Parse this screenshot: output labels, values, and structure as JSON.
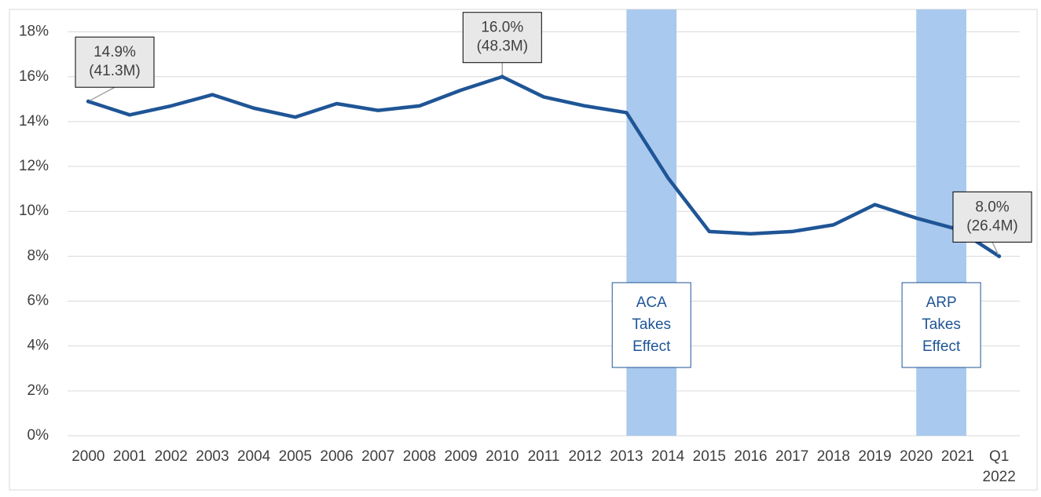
{
  "chart_data": {
    "type": "line",
    "categories": [
      "2000",
      "2001",
      "2002",
      "2003",
      "2004",
      "2005",
      "2006",
      "2007",
      "2008",
      "2009",
      "2010",
      "2011",
      "2012",
      "2013",
      "2014",
      "2015",
      "2016",
      "2017",
      "2018",
      "2019",
      "2020",
      "2021",
      "Q1 2022"
    ],
    "series": [
      {
        "color": "#1f5596",
        "values": [
          14.9,
          14.3,
          14.7,
          15.2,
          14.6,
          14.2,
          14.8,
          14.5,
          14.7,
          15.4,
          16.0,
          15.1,
          14.7,
          14.4,
          11.5,
          9.1,
          9.0,
          9.1,
          9.4,
          10.3,
          9.7,
          9.2,
          8.0
        ],
        "value_labels": [
          "14.9% (41.3M)",
          null,
          null,
          null,
          null,
          null,
          null,
          null,
          null,
          null,
          "16.0% (48.3M)",
          null,
          null,
          null,
          null,
          null,
          null,
          null,
          null,
          null,
          null,
          null,
          "8.0% (26.4M)"
        ]
      }
    ],
    "ylim": [
      0,
      19
    ],
    "yticks": [
      {
        "value": 0,
        "label": "0%"
      },
      {
        "value": 2,
        "label": "2%"
      },
      {
        "value": 4,
        "label": "4%"
      },
      {
        "value": 6,
        "label": "6%"
      },
      {
        "value": 8,
        "label": "8%"
      },
      {
        "value": 10,
        "label": "10%"
      },
      {
        "value": 12,
        "label": "12%"
      },
      {
        "value": 14,
        "label": "14%"
      },
      {
        "value": 16,
        "label": "16%"
      },
      {
        "value": 18,
        "label": "18%"
      }
    ],
    "grid": true,
    "bands": [
      {
        "from": "2013",
        "to": "2014",
        "label": "ACA Takes Effect",
        "color": "#a9c9ee"
      },
      {
        "from": "2020",
        "to": "2021",
        "label": "ARP Takes Effect",
        "color": "#a9c9ee"
      }
    ]
  }
}
